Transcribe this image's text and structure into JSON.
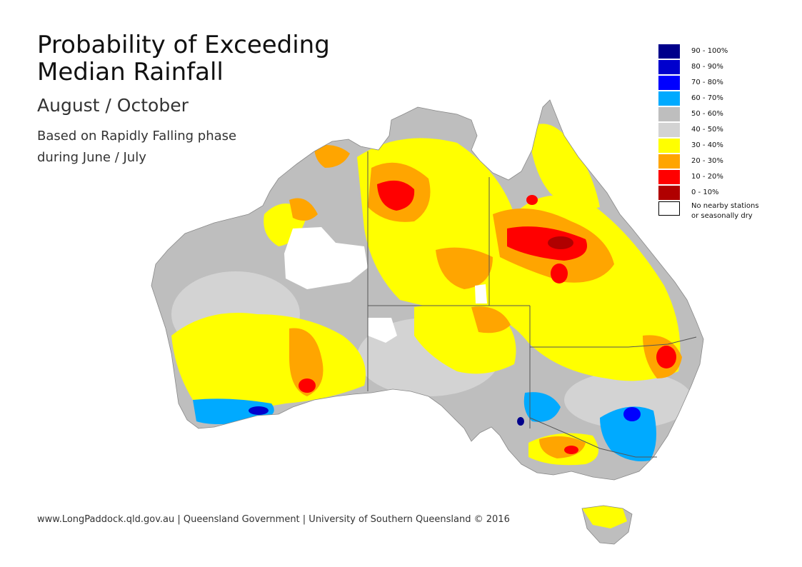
{
  "title": {
    "line1": "Probability of Exceeding",
    "line2": "Median Rainfall"
  },
  "subtitle": "August / October",
  "note": {
    "line1": "Based on Rapidly Falling phase",
    "line2": "during June / July"
  },
  "legend": [
    {
      "label": "90 - 100%",
      "color": "#00008b"
    },
    {
      "label": "80 - 90%",
      "color": "#0000cd"
    },
    {
      "label": "70 - 80%",
      "color": "#0000ff"
    },
    {
      "label": "60 - 70%",
      "color": "#00aaff"
    },
    {
      "label": "50 - 60%",
      "color": "#bebebe"
    },
    {
      "label": "40 - 50%",
      "color": "#d3d3d3"
    },
    {
      "label": "30 - 40%",
      "color": "#ffff00"
    },
    {
      "label": "20 - 30%",
      "color": "#ffa500"
    },
    {
      "label": "10 - 20%",
      "color": "#ff0000"
    },
    {
      "label": "0 - 10%",
      "color": "#b00000"
    },
    {
      "label": "No nearby stations",
      "label2": "or seasonally dry",
      "color": "#ffffff"
    }
  ],
  "footer": "www.LongPaddock.qld.gov.au | Queensland Government | University of Southern Queensland © 2016",
  "map": {
    "region": "Australia",
    "colors": {
      "ocean": "#ffffff",
      "border": "#555555",
      "gray": "#bebebe",
      "lightgray": "#d3d3d3",
      "yellow": "#ffff00",
      "orange": "#ffa500",
      "red": "#ff0000",
      "darkred": "#b00000",
      "lightblue": "#00aaff",
      "blue": "#0000ff",
      "darkblue": "#00008b"
    }
  }
}
